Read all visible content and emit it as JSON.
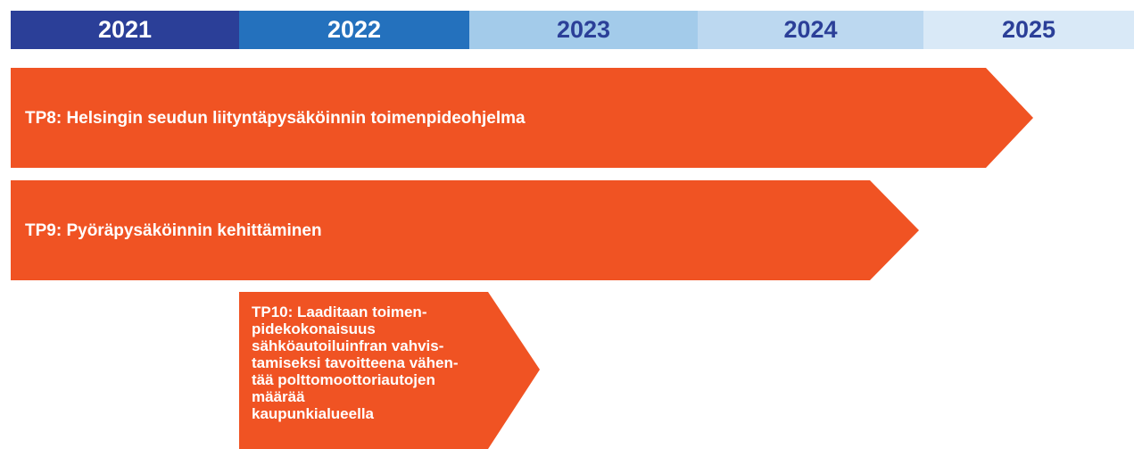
{
  "years": [
    "2021",
    "2022",
    "2023",
    "2024",
    "2025"
  ],
  "tasks": [
    {
      "label": "TP8: Helsingin seudun liityntäpysäköinnin toimenpideohjelma"
    },
    {
      "label": "TP9: Pyöräpysäköinnin kehittäminen"
    },
    {
      "lines": [
        "TP10: Laaditaan toimen-",
        "pidekokonaisuus",
        "sähköautoiluinfran vahvis-",
        "tamiseksi tavoitteena vähen-",
        "tää polttomoottoriautojen",
        "määrää",
        "kaupunkialueella"
      ]
    }
  ]
}
